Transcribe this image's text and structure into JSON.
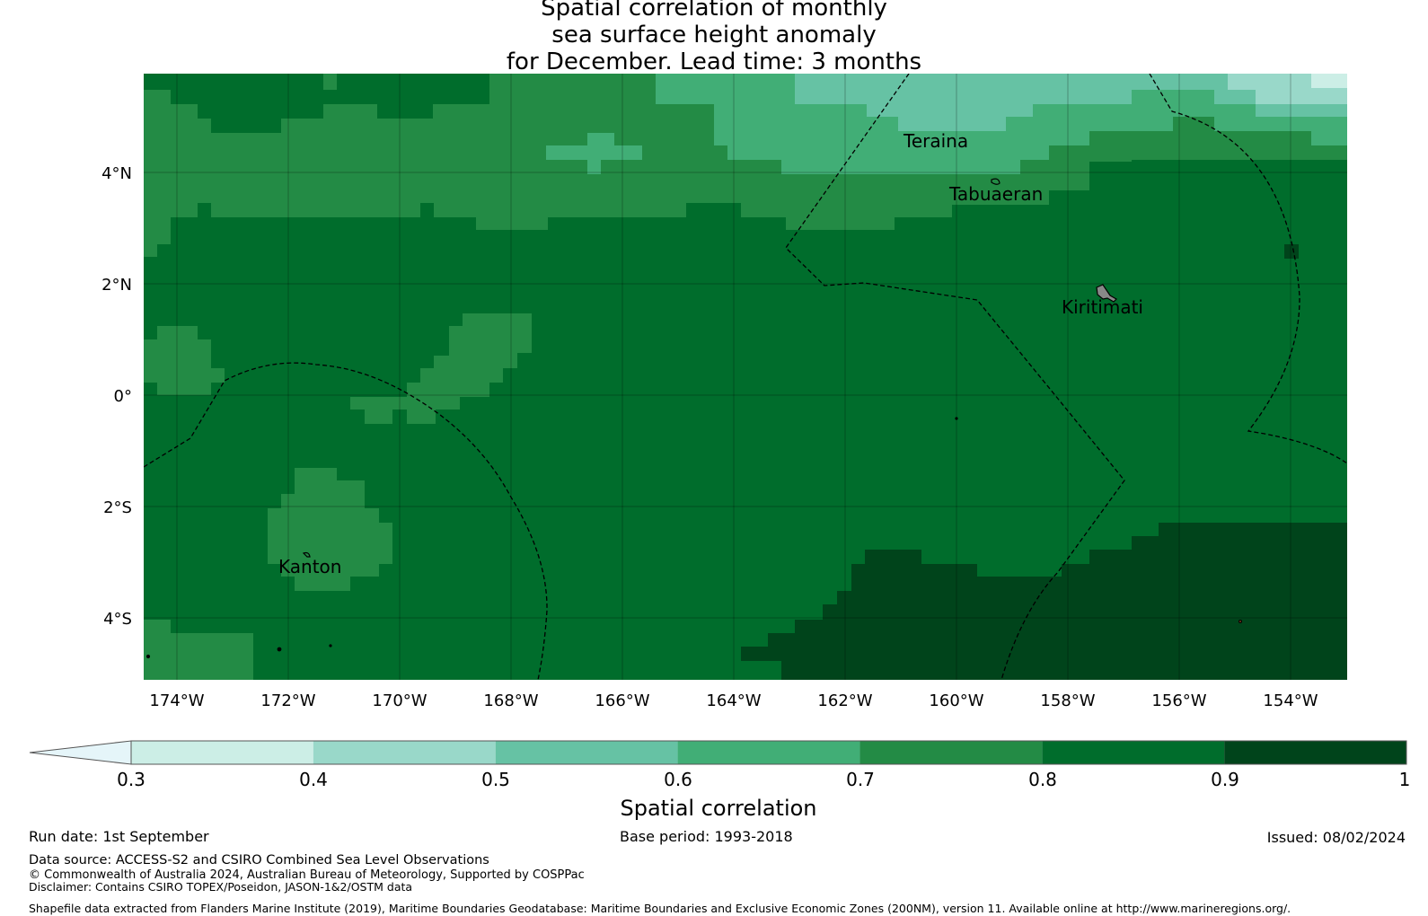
{
  "title_lines": [
    "Spatial correlation of monthly",
    "sea surface height anomaly",
    "for December. Lead time: 3 months"
  ],
  "map": {
    "lat_ticks": [
      "4°N",
      "2°N",
      "0°",
      "2°S",
      "4°S"
    ],
    "lon_ticks": [
      "174°W",
      "172°W",
      "170°W",
      "168°W",
      "166°W",
      "164°W",
      "162°W",
      "160°W",
      "158°W",
      "156°W",
      "154°W"
    ],
    "place_labels": [
      "Teraina",
      "Tabuaeran",
      "Kiritimati",
      "Kanton"
    ]
  },
  "colorbar": {
    "label": "Spatial correlation",
    "tick_labels": [
      "0.3",
      "0.4",
      "0.5",
      "0.6",
      "0.7",
      "0.8",
      "0.9",
      "1"
    ],
    "colors": [
      "#e5f5f9",
      "#cceee6",
      "#99d8c9",
      "#66c2a4",
      "#41ae76",
      "#238b45",
      "#006d2c",
      "#00441b"
    ]
  },
  "footer": {
    "run_date": "Run date: 1st September",
    "base_period": "Base period: 1993-2018",
    "issued": "Issued: 08/02/2024",
    "data_source": "Data source: ACCESS-S2 and CSIRO Combined Sea Level Observations",
    "copyright": "© Commonwealth of Australia 2024, Australian Bureau of Meteorology, Supported by COSPPac",
    "disclaimer": "Disclaimer: Contains CSIRO TOPEX/Poseidon, JASON-1&2/OSTM data",
    "shapefile": "Shapefile data extracted from Flanders Marine Institute (2019), Maritime Boundaries Geodatabase: Maritime Boundaries and Exclusive Economic Zones (200NM), version 11. Available online at http://www.marineregions.org/."
  }
}
